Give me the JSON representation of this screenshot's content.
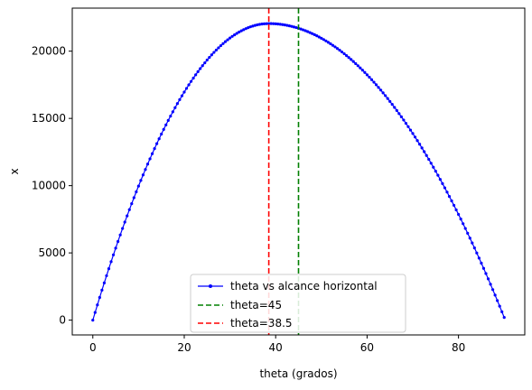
{
  "chart_data": {
    "type": "line",
    "title": "",
    "xlabel": "theta (grados)",
    "ylabel": "x",
    "xlim": [
      -4.5,
      94.5
    ],
    "ylim": [
      -1100,
      23200
    ],
    "xticks": [
      0,
      20,
      40,
      60,
      80
    ],
    "yticks": [
      0,
      5000,
      10000,
      15000,
      20000
    ],
    "grid": false,
    "legend_position": "lower center",
    "series": [
      {
        "name": "theta vs alcance horizontal",
        "color": "#0000ff",
        "marker": "dot",
        "curve": {
          "theta_start": 0,
          "theta_end": 90,
          "theta_step": 0.5,
          "peak_theta": 38.5,
          "peak_x": 22050,
          "x_at_90": 200
        }
      }
    ],
    "vlines": [
      {
        "name": "theta=45",
        "x": 45,
        "color": "#008000",
        "style": "dashed"
      },
      {
        "name": "theta=38.5",
        "x": 38.5,
        "color": "#ff0000",
        "style": "dashed"
      }
    ]
  }
}
